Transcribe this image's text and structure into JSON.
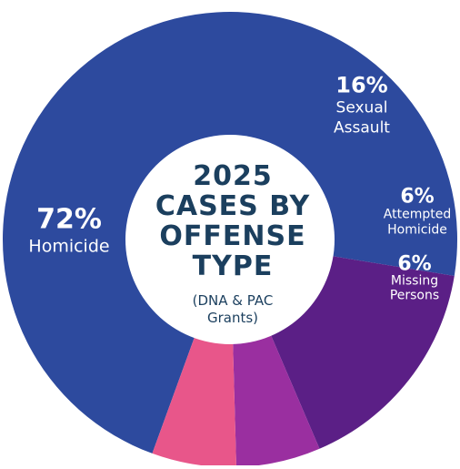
{
  "chart_data": {
    "type": "pie",
    "title_lines": [
      "2025",
      "CASES BY",
      "OFFENSE",
      "TYPE"
    ],
    "subtitle_lines": [
      "(DNA & PAC",
      "Grants)"
    ],
    "slices": [
      {
        "label_lines": [
          "Homicide"
        ],
        "value": 72,
        "value_label": "72%",
        "color": "#2d4a9e"
      },
      {
        "label_lines": [
          "Sexual",
          "Assault"
        ],
        "value": 16,
        "value_label": "16%",
        "color": "#5b1f86"
      },
      {
        "label_lines": [
          "Attempted",
          "Homicide"
        ],
        "value": 6,
        "value_label": "6%",
        "color": "#9a2fa0"
      },
      {
        "label_lines": [
          "Missing",
          "Persons"
        ],
        "value": 6,
        "value_label": "6%",
        "color": "#e8568a"
      }
    ]
  }
}
